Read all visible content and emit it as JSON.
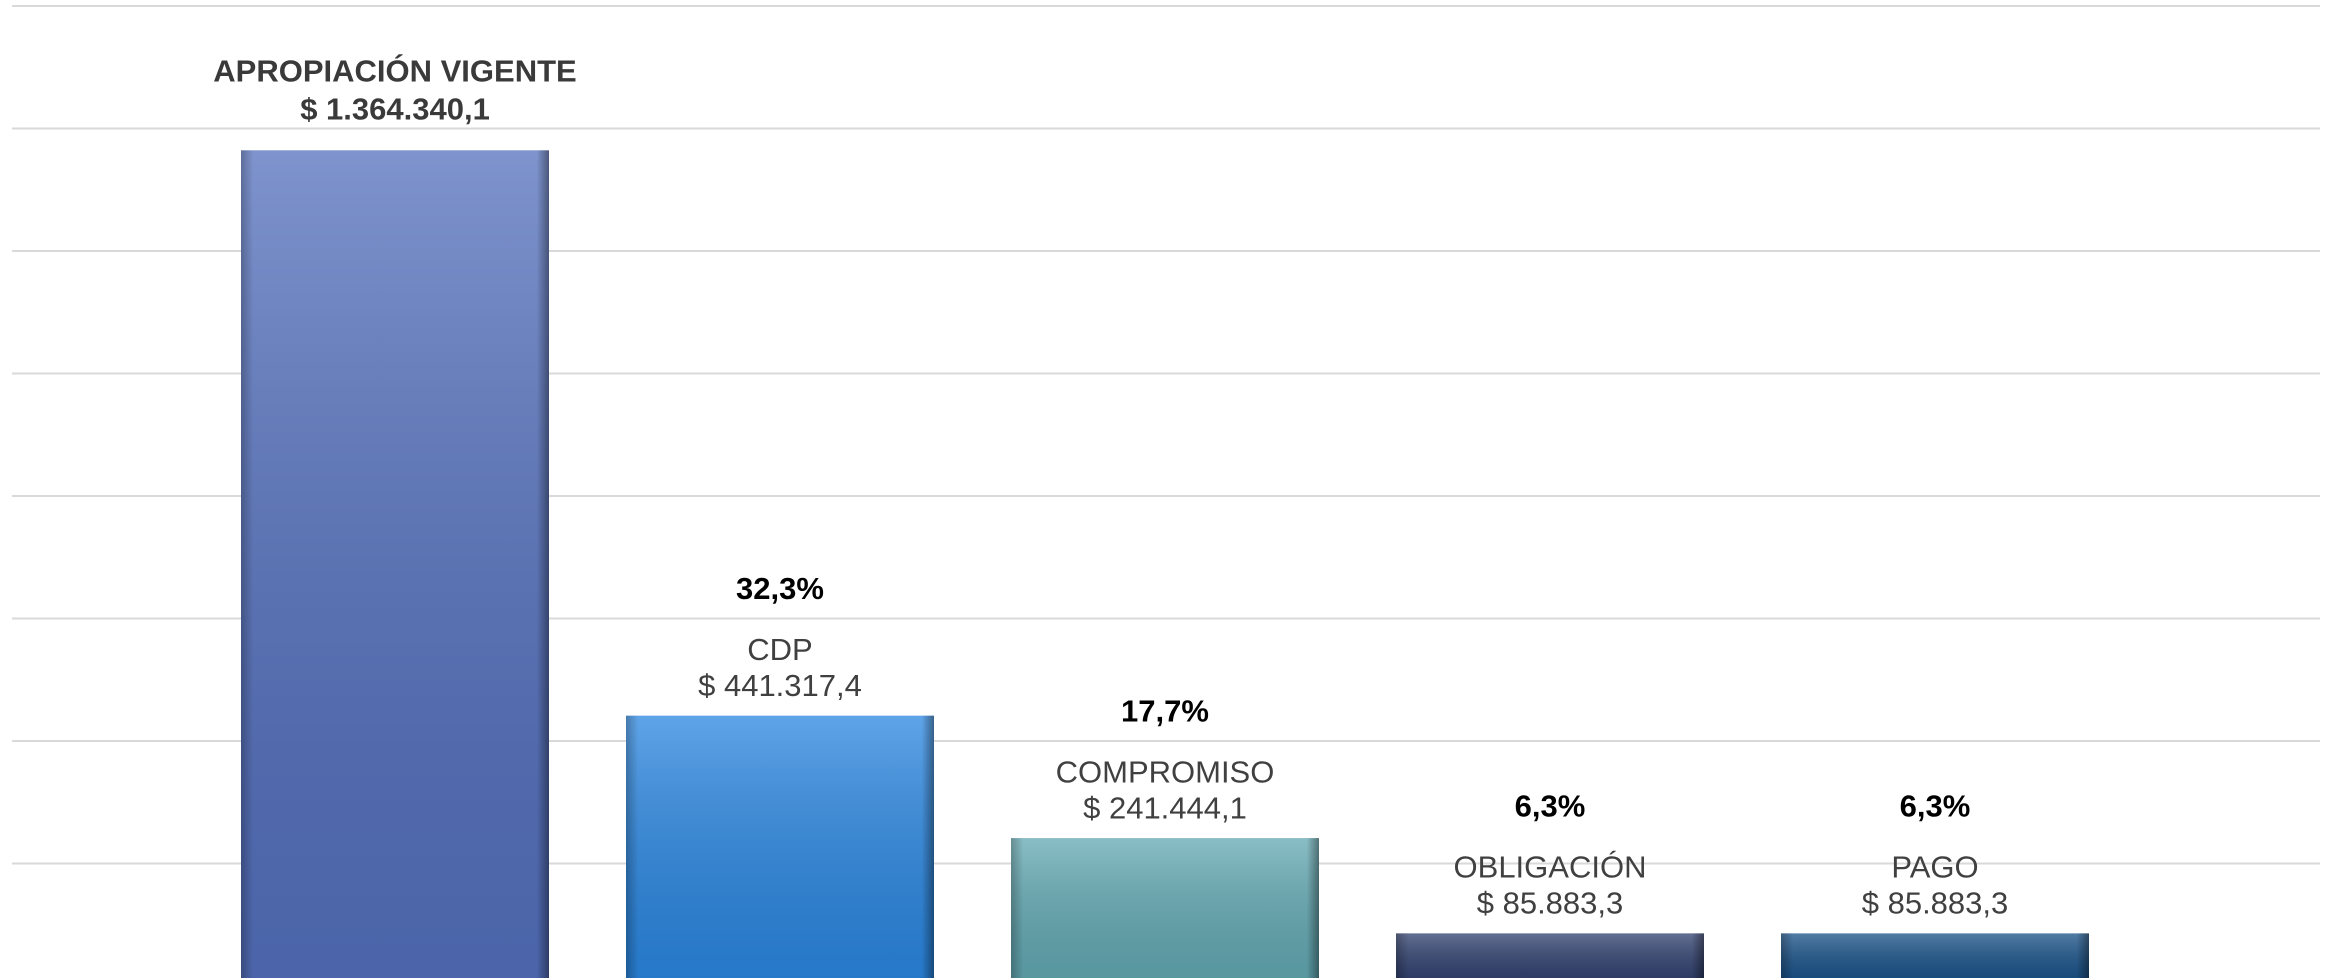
{
  "chart_data": {
    "type": "bar",
    "categories": [
      "APROPIACIÓN VIGENTE",
      "CDP",
      "COMPROMISO",
      "OBLIGACIÓN",
      "PAGO"
    ],
    "values": [
      1364340.1,
      441317.4,
      241444.1,
      85883.3,
      85883.3
    ],
    "value_labels": [
      "$ 1.364.340,1",
      "$ 441.317,4",
      "$ 241.444,1",
      "$ 85.883,3",
      "$ 85.883,3"
    ],
    "shares": [
      null,
      32.3,
      17.7,
      6.3,
      6.3
    ],
    "share_labels": [
      null,
      "32,3%",
      "17,7%",
      "6,3%",
      "6,3%"
    ],
    "colors": [
      "#5470bd",
      "#2a86e0",
      "#62a8b2",
      "#2f3f6e",
      "#175087"
    ],
    "ylim": [
      0,
      1600000
    ],
    "yticks": [
      0,
      200000,
      400000,
      600000,
      800000,
      1000000,
      1200000,
      1400000,
      1600000
    ],
    "grid": true
  }
}
